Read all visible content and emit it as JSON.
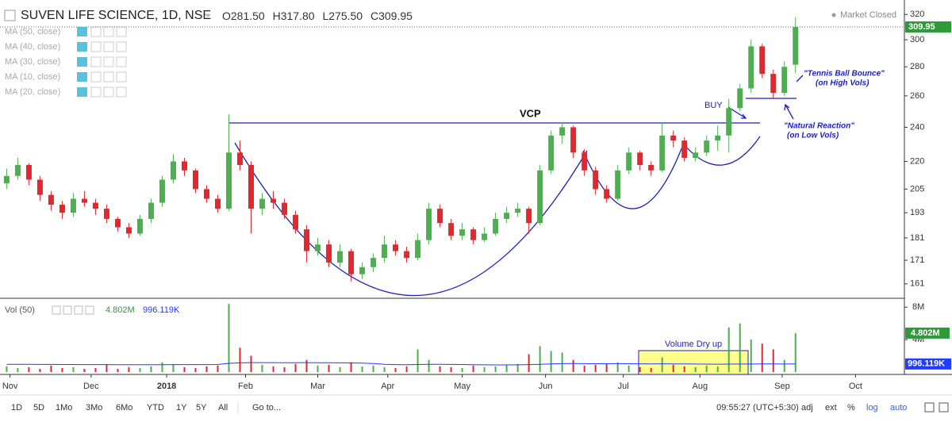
{
  "header": {
    "symbol": "SUVEN LIFE SCIENCE, 1D, NSE",
    "ohlc_keys": [
      "O",
      "H",
      "L",
      "C"
    ],
    "status": "Market Closed",
    "indicators": [
      "MA (50, close)",
      "MA (40, close)",
      "MA (30, close)",
      "MA (10, close)",
      "MA (20, close)"
    ]
  },
  "chart_data": [
    {
      "type": "candlestick",
      "log_scale": true,
      "up_color": "#4caf50",
      "down_color": "#e0282e",
      "last_color": "#2e9a3a",
      "ohlc": [
        [
          208,
          216,
          205,
          212
        ],
        [
          212,
          222,
          210,
          218
        ],
        [
          218,
          219,
          207,
          210
        ],
        [
          210,
          212,
          199,
          202
        ],
        [
          202,
          204,
          194,
          197
        ],
        [
          197,
          199,
          190,
          193
        ],
        [
          193,
          203,
          191,
          200
        ],
        [
          200,
          204,
          196,
          198
        ],
        [
          198,
          200,
          192,
          195
        ],
        [
          195,
          197,
          188,
          190
        ],
        [
          190,
          191,
          184,
          186
        ],
        [
          186,
          188,
          181,
          183
        ],
        [
          183,
          192,
          182,
          190
        ],
        [
          190,
          200,
          188,
          198
        ],
        [
          198,
          212,
          196,
          210
        ],
        [
          210,
          224,
          208,
          220
        ],
        [
          220,
          222,
          212,
          215
        ],
        [
          215,
          216,
          203,
          205
        ],
        [
          205,
          207,
          198,
          200
        ],
        [
          200,
          202,
          193,
          195
        ],
        [
          195,
          248,
          194,
          225
        ],
        [
          225,
          232,
          215,
          218
        ],
        [
          218,
          220,
          183,
          195
        ],
        [
          195,
          203,
          192,
          200
        ],
        [
          200,
          204,
          195,
          198
        ],
        [
          198,
          200,
          190,
          192
        ],
        [
          192,
          194,
          183,
          185
        ],
        [
          185,
          187,
          170,
          175
        ],
        [
          175,
          181,
          173,
          178
        ],
        [
          178,
          180,
          168,
          170
        ],
        [
          170,
          178,
          168,
          175
        ],
        [
          175,
          176,
          162,
          165
        ],
        [
          165,
          170,
          163,
          168
        ],
        [
          168,
          174,
          166,
          172
        ],
        [
          172,
          182,
          170,
          178
        ],
        [
          178,
          180,
          173,
          175
        ],
        [
          175,
          177,
          170,
          172
        ],
        [
          172,
          183,
          171,
          180
        ],
        [
          180,
          198,
          178,
          195
        ],
        [
          195,
          197,
          186,
          188
        ],
        [
          188,
          190,
          180,
          182
        ],
        [
          182,
          188,
          180,
          185
        ],
        [
          185,
          186,
          178,
          180
        ],
        [
          180,
          186,
          179,
          183
        ],
        [
          183,
          193,
          182,
          190
        ],
        [
          190,
          196,
          188,
          193
        ],
        [
          193,
          198,
          191,
          195
        ],
        [
          195,
          196,
          183,
          188
        ],
        [
          188,
          218,
          187,
          215
        ],
        [
          215,
          238,
          213,
          235
        ],
        [
          235,
          243,
          230,
          240
        ],
        [
          240,
          241,
          222,
          225
        ],
        [
          225,
          227,
          212,
          215
        ],
        [
          215,
          217,
          202,
          205
        ],
        [
          205,
          207,
          198,
          200
        ],
        [
          200,
          218,
          199,
          215
        ],
        [
          215,
          228,
          213,
          225
        ],
        [
          225,
          226,
          215,
          218
        ],
        [
          218,
          220,
          212,
          215
        ],
        [
          215,
          243,
          214,
          235
        ],
        [
          235,
          238,
          228,
          232
        ],
        [
          232,
          234,
          220,
          222
        ],
        [
          222,
          228,
          220,
          225
        ],
        [
          225,
          235,
          223,
          232
        ],
        [
          232,
          241,
          226,
          235
        ],
        [
          235,
          258,
          225,
          252
        ],
        [
          252,
          268,
          250,
          265
        ],
        [
          265,
          300,
          262,
          295
        ],
        [
          295,
          297,
          272,
          275
        ],
        [
          275,
          278,
          258,
          262
        ],
        [
          262,
          284,
          260,
          280
        ],
        [
          281.5,
          317.8,
          275.5,
          309.95
        ]
      ],
      "value_labels": [
        "281.50",
        "317.80",
        "275.50",
        "309.95"
      ],
      "ylim": [
        155.5,
        332
      ],
      "yticks": [
        320,
        300,
        280,
        260,
        240,
        220,
        205,
        193,
        181,
        171,
        161
      ],
      "xlim": [
        -0.6,
        80.8
      ],
      "xticks": [
        {
          "value": 0.3,
          "label": "Nov"
        },
        {
          "value": 7.6,
          "label": "Dec"
        },
        {
          "value": 14.4,
          "label": "2018"
        },
        {
          "value": 21.5,
          "label": "Feb"
        },
        {
          "value": 28,
          "label": "Mar"
        },
        {
          "value": 34.3,
          "label": "Apr"
        },
        {
          "value": 41,
          "label": "May"
        },
        {
          "value": 48.5,
          "label": "Jun"
        },
        {
          "value": 55.5,
          "label": "Jul"
        },
        {
          "value": 62.4,
          "label": "Aug"
        },
        {
          "value": 69.8,
          "label": "Sep"
        },
        {
          "value": 76.4,
          "label": "Oct"
        }
      ],
      "annotations": {
        "pattern": "VCP",
        "buy": "BUY",
        "bounce": [
          "\"Tennis Ball Bounce\"",
          "(on High Vols)"
        ],
        "reaction": [
          "\"Natural Reaction\"",
          "(on Low Vols)"
        ]
      }
    },
    {
      "type": "bar",
      "title": "Vol (50)",
      "values": [
        700000,
        500000,
        600000,
        400000,
        800000,
        500000,
        600000,
        400000,
        500000,
        900000,
        400000,
        600000,
        500000,
        700000,
        1200000,
        900000,
        600000,
        500000,
        700000,
        800000,
        8400000,
        3000000,
        2000000,
        900000,
        700000,
        600000,
        1000000,
        1500000,
        800000,
        900000,
        600000,
        1200000,
        700000,
        800000,
        600000,
        500000,
        700000,
        2800000,
        1500000,
        700000,
        600000,
        500000,
        800000,
        600000,
        700000,
        900000,
        1000000,
        2200000,
        3200000,
        2600000,
        2400000,
        1500000,
        800000,
        900000,
        1000000,
        1200000,
        800000,
        600000,
        500000,
        1800000,
        900000,
        700000,
        600000,
        800000,
        700000,
        5500000,
        6000000,
        4000000,
        3500000,
        2800000,
        1500000,
        4802000
      ],
      "value_labels": {
        "last": "4.802M",
        "ma_last": "996.119K"
      },
      "ma_values": [
        950000,
        950000,
        950000,
        940000,
        940000,
        930000,
        930000,
        920000,
        920000,
        920000,
        910000,
        910000,
        900000,
        900000,
        910000,
        920000,
        920000,
        920000,
        920000,
        930000,
        1080000,
        1130000,
        1160000,
        1160000,
        1160000,
        1150000,
        1150000,
        1160000,
        1150000,
        1140000,
        1130000,
        1120000,
        1100000,
        1060000,
        950000,
        920000,
        900000,
        930000,
        950000,
        950000,
        940000,
        930000,
        900000,
        890000,
        880000,
        880000,
        890000,
        920000,
        960000,
        1000000,
        1040000,
        1050000,
        1040000,
        1030000,
        1030000,
        1040000,
        1030000,
        1020000,
        1010000,
        1020000,
        1010000,
        1000000,
        990000,
        980000,
        970000,
        980000,
        990000,
        990000,
        995000,
        995000,
        990000,
        996119
      ],
      "color_ma": "#1f3cff",
      "ylim": [
        0,
        8900000
      ],
      "yticks": [
        {
          "value": 8000000,
          "label": "8M"
        },
        {
          "value": 4000000,
          "label": "4M"
        }
      ],
      "annotation": "Volume Dry up"
    }
  ],
  "toolbar": {
    "ranges": [
      "1D",
      "5D",
      "1Mo",
      "3Mo",
      "6Mo",
      "YTD",
      "1Y",
      "5Y",
      "All"
    ],
    "goto": "Go to...",
    "time": "09:55:27 (UTC+5:30)",
    "options": [
      "adj",
      "ext",
      "%",
      "log",
      "auto"
    ]
  }
}
